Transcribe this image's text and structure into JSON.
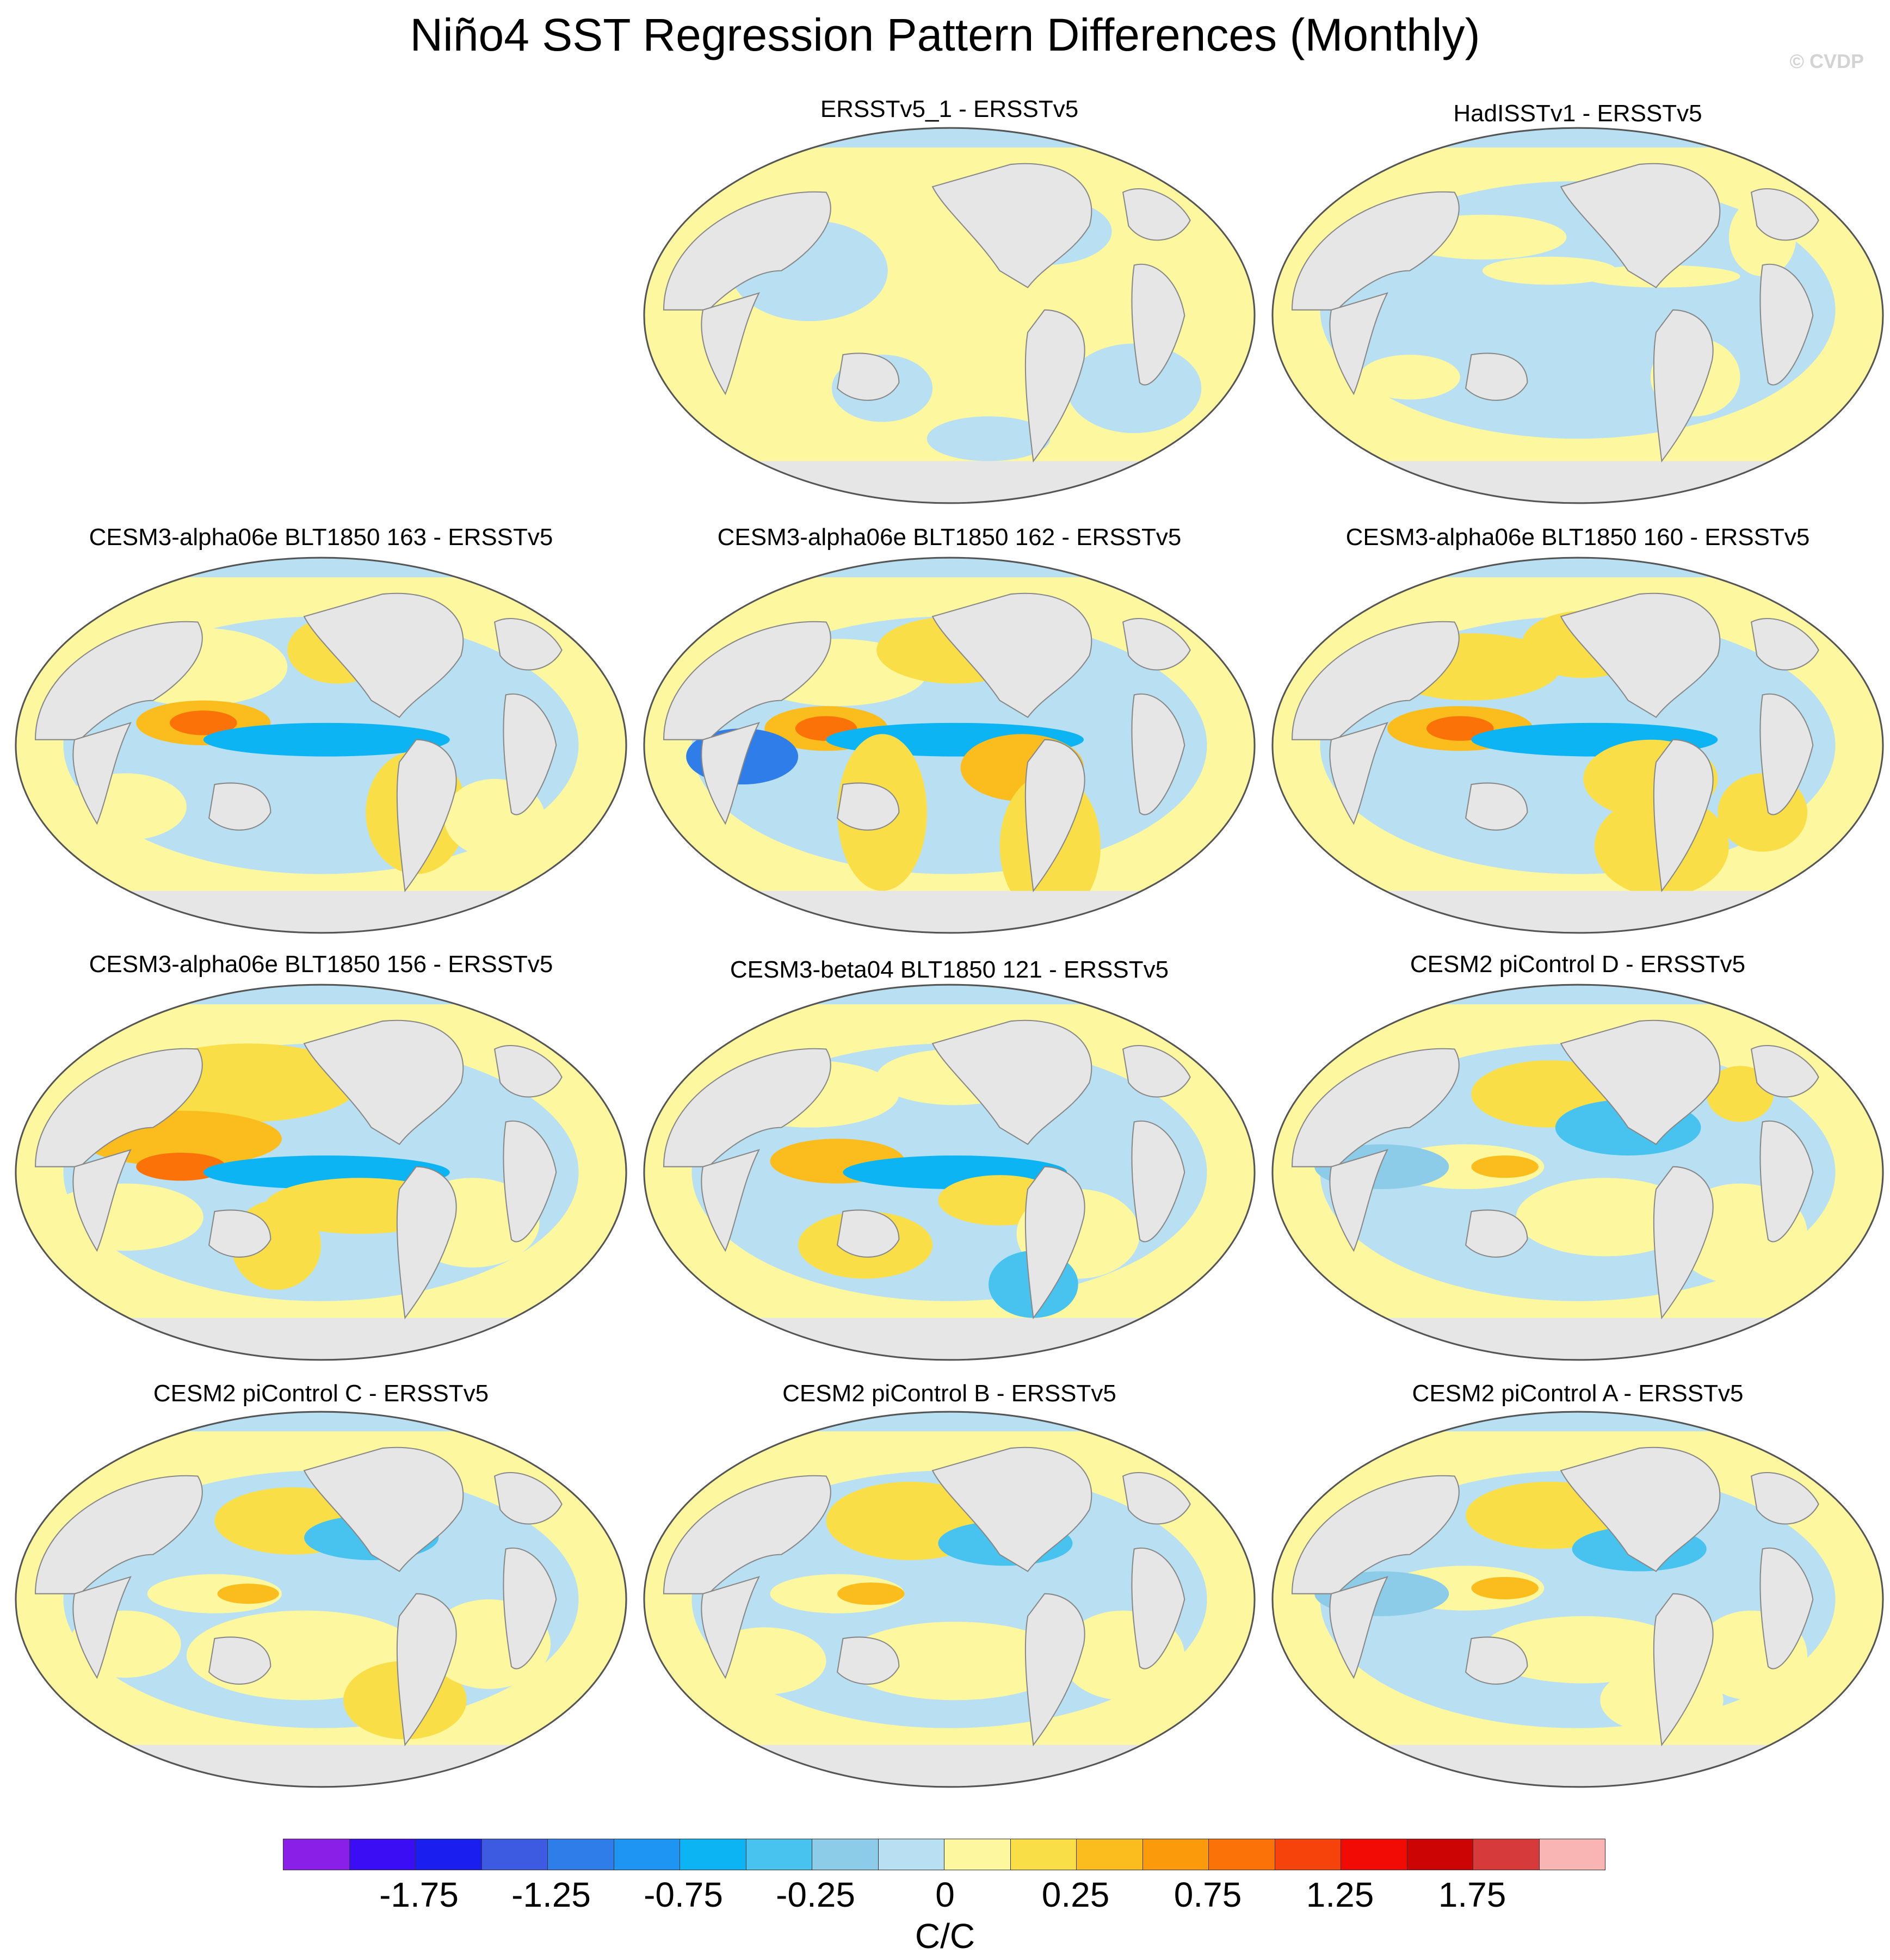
{
  "figure": {
    "title": "Niño4 SST Regression Pattern Differences (Monthly)",
    "watermark": "© CVDP"
  },
  "panels": [
    {
      "id": "p1",
      "title": "ERSSTv5_1 - ERSSTv5"
    },
    {
      "id": "p2",
      "title": "HadISSTv1 - ERSSTv5"
    },
    {
      "id": "p3",
      "title": "CESM3-alpha06e BLT1850 163 - ERSSTv5"
    },
    {
      "id": "p4",
      "title": "CESM3-alpha06e BLT1850 162 - ERSSTv5"
    },
    {
      "id": "p5",
      "title": "CESM3-alpha06e BLT1850 160 - ERSSTv5"
    },
    {
      "id": "p6",
      "title": "CESM3-alpha06e BLT1850 156 - ERSSTv5"
    },
    {
      "id": "p7",
      "title": "CESM3-beta04 BLT1850 121 - ERSSTv5"
    },
    {
      "id": "p8",
      "title": "CESM2 piControl D - ERSSTv5"
    },
    {
      "id": "p9",
      "title": "CESM2 piControl C - ERSSTv5"
    },
    {
      "id": "p10",
      "title": "CESM2 piControl B - ERSSTv5"
    },
    {
      "id": "p11",
      "title": "CESM2 piControl A - ERSSTv5"
    }
  ],
  "colorbar": {
    "units": "C/C",
    "colors": [
      "#8a1fe8",
      "#3a0df5",
      "#1a1ff0",
      "#3c5be0",
      "#2f7de8",
      "#1e95f2",
      "#0db4f4",
      "#48c3f0",
      "#8ccce9",
      "#b8e0f2",
      "#fdf7a0",
      "#f9de48",
      "#fbbd1e",
      "#fb9a0a",
      "#fb7208",
      "#f6420b",
      "#f20a05",
      "#cc0404",
      "#d63a3a",
      "#f9b4b4"
    ],
    "tick_labels": [
      "-1.75",
      "-1.25",
      "-0.75",
      "-0.25",
      "0",
      "0.25",
      "0.75",
      "1.25",
      "1.75"
    ]
  }
}
